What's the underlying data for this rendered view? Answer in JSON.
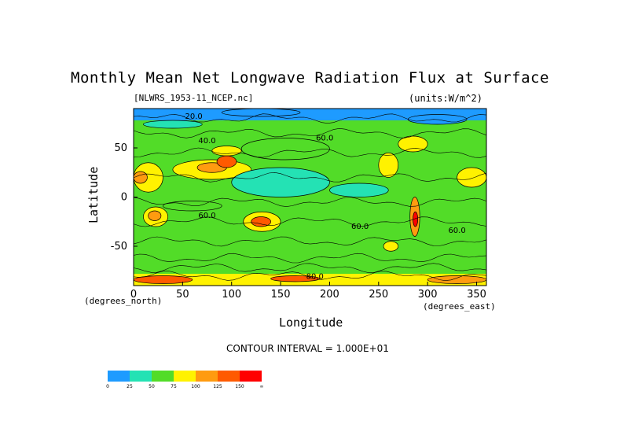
{
  "chart_data": {
    "type": "heatmap",
    "title": "Monthly Mean Net Longwave Radiation Flux at Surface",
    "subtitle_left": "[NLWRS_1953-11_NCEP.nc]",
    "subtitle_right": "(units:W/m^2)",
    "xlabel": "Longitude",
    "ylabel": "Latitude",
    "x_units": "(degrees_east)",
    "y_units": "(degrees_north)",
    "xlim": [
      0,
      360
    ],
    "ylim": [
      -90,
      90
    ],
    "x_ticks": [
      "0",
      "50",
      "100",
      "150",
      "200",
      "250",
      "300",
      "350"
    ],
    "y_ticks": [
      "50",
      "0",
      "-50"
    ],
    "contour_interval_text": "CONTOUR INTERVAL = 1.000E+01",
    "contour_labels": [
      {
        "text": "-20.0",
        "lon": 60,
        "lat": 83
      },
      {
        "text": "40.0",
        "lon": 75,
        "lat": 58
      },
      {
        "text": "60.0",
        "lon": 75,
        "lat": -18
      },
      {
        "text": "60.0",
        "lon": 231,
        "lat": -29
      },
      {
        "text": "60.0",
        "lon": 330,
        "lat": -33
      },
      {
        "text": "60.0",
        "lon": 195,
        "lat": 61
      },
      {
        "text": "80.0",
        "lon": 185,
        "lat": -80
      }
    ],
    "colorbar": {
      "labels": [
        "0",
        "25",
        "50",
        "75",
        "100",
        "125",
        "150",
        "∞"
      ],
      "colors": [
        "#1e9bff",
        "#24e2b4",
        "#52dc28",
        "#fff200",
        "#ff9b10",
        "#ff5a00",
        "#ff0000"
      ]
    },
    "regions": [
      {
        "lon": [
          0,
          360
        ],
        "lat": [
          -90,
          90
        ],
        "value": 55
      },
      {
        "lon": [
          0,
          360
        ],
        "lat": [
          78,
          90
        ],
        "value": 22
      },
      {
        "lon": [
          90,
          170
        ],
        "lat": [
          82,
          90
        ],
        "value": 8
      },
      {
        "lon": [
          280,
          340
        ],
        "lat": [
          74,
          84
        ],
        "value": 14
      },
      {
        "lon": [
          10,
          70
        ],
        "lat": [
          70,
          78
        ],
        "value": 42
      },
      {
        "lon": [
          110,
          200
        ],
        "lat": [
          38,
          60
        ],
        "value": 68
      },
      {
        "lon": [
          270,
          300
        ],
        "lat": [
          46,
          62
        ],
        "value": 76
      },
      {
        "lon": [
          0,
          30
        ],
        "lat": [
          5,
          35
        ],
        "value": 95
      },
      {
        "lon": [
          0,
          14
        ],
        "lat": [
          14,
          26
        ],
        "value": 120
      },
      {
        "lon": [
          40,
          120
        ],
        "lat": [
          18,
          38
        ],
        "value": 85
      },
      {
        "lon": [
          65,
          95
        ],
        "lat": [
          25,
          35
        ],
        "value": 110
      },
      {
        "lon": [
          85,
          105
        ],
        "lat": [
          30,
          42
        ],
        "value": 140
      },
      {
        "lon": [
          80,
          110
        ],
        "lat": [
          42,
          52
        ],
        "value": 92
      },
      {
        "lon": [
          250,
          270
        ],
        "lat": [
          20,
          45
        ],
        "value": 88
      },
      {
        "lon": [
          330,
          360
        ],
        "lat": [
          10,
          30
        ],
        "value": 90
      },
      {
        "lon": [
          100,
          200
        ],
        "lat": [
          0,
          30
        ],
        "value": 40
      },
      {
        "lon": [
          200,
          260
        ],
        "lat": [
          0,
          14
        ],
        "value": 44
      },
      {
        "lon": [
          10,
          35
        ],
        "lat": [
          -30,
          -10
        ],
        "value": 82
      },
      {
        "lon": [
          15,
          28
        ],
        "lat": [
          -24,
          -14
        ],
        "value": 118
      },
      {
        "lon": [
          112,
          150
        ],
        "lat": [
          -35,
          -15
        ],
        "value": 88
      },
      {
        "lon": [
          120,
          140
        ],
        "lat": [
          -30,
          -20
        ],
        "value": 125
      },
      {
        "lon": [
          282,
          292
        ],
        "lat": [
          -40,
          0
        ],
        "value": 110
      },
      {
        "lon": [
          285,
          290
        ],
        "lat": [
          -30,
          -15
        ],
        "value": 150
      },
      {
        "lon": [
          255,
          270
        ],
        "lat": [
          -55,
          -45
        ],
        "value": 85
      },
      {
        "lon": [
          30,
          90
        ],
        "lat": [
          -14,
          -4
        ],
        "value": 68
      },
      {
        "lon": [
          0,
          360
        ],
        "lat": [
          -78,
          -68
        ],
        "value": 72
      },
      {
        "lon": [
          0,
          360
        ],
        "lat": [
          -90,
          -78
        ],
        "value": 95
      },
      {
        "lon": [
          0,
          60
        ],
        "lat": [
          -88,
          -80
        ],
        "value": 125
      },
      {
        "lon": [
          140,
          190
        ],
        "lat": [
          -86,
          -80
        ],
        "value": 130
      },
      {
        "lon": [
          300,
          360
        ],
        "lat": [
          -88,
          -80
        ],
        "value": 120
      }
    ]
  }
}
